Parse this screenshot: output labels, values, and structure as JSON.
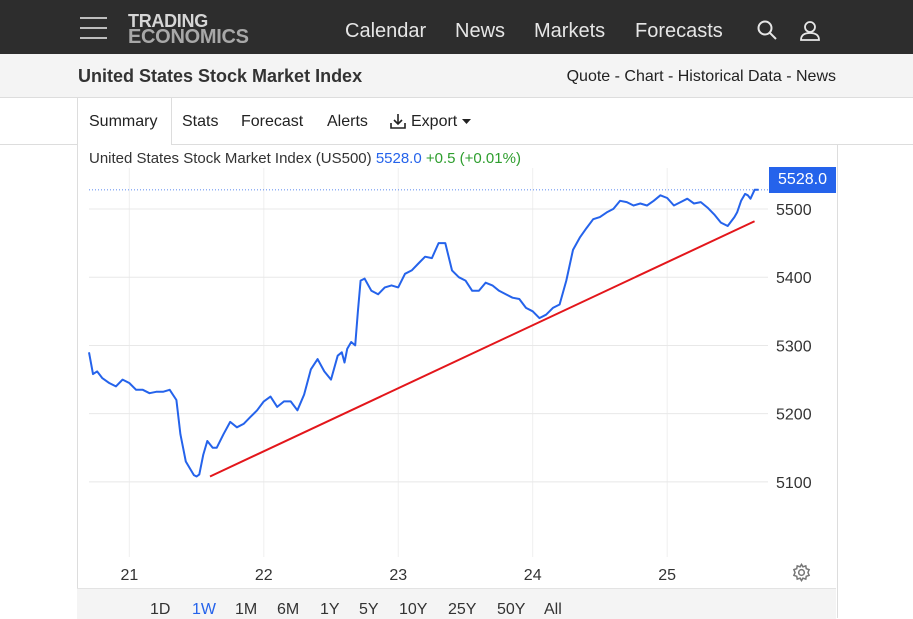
{
  "header": {
    "logo_line1": "TRADING",
    "logo_line2": "ECONOMICS",
    "nav": [
      "Calendar",
      "News",
      "Markets",
      "Forecasts"
    ]
  },
  "subheader": {
    "title": "United States Stock Market Index",
    "links": "Quote - Chart - Historical Data - News"
  },
  "tabs": [
    "Summary",
    "Stats",
    "Forecast",
    "Alerts",
    "Export"
  ],
  "legend": {
    "name": "United States Stock Market Index (US500)",
    "value": "5528.0",
    "change": "+0.5 (+0.01%)"
  },
  "price_tag": "5528.0",
  "ranges": [
    "1D",
    "1W",
    "1M",
    "6M",
    "1Y",
    "5Y",
    "10Y",
    "25Y",
    "50Y",
    "All"
  ],
  "active_range": "1W",
  "colors": {
    "line": "#2563eb",
    "trendline": "#e3161b",
    "tag": "#2563eb"
  },
  "icons": [
    "hamburger-icon",
    "search-icon",
    "user-icon",
    "download-icon",
    "caret-down-icon",
    "gear-icon"
  ],
  "chart_data": {
    "type": "line",
    "x_tick_labels": [
      "21",
      "22",
      "23",
      "24",
      "25"
    ],
    "x_tick_values": [
      21,
      22,
      23,
      24,
      25
    ],
    "xlim": [
      20.7,
      25.75
    ],
    "y_tick_labels": [
      "5100",
      "5200",
      "5300",
      "5400",
      "5500"
    ],
    "y_ticks": [
      5100,
      5200,
      5300,
      5400,
      5500
    ],
    "ylim": [
      4990,
      5560
    ],
    "grid": true,
    "last_value": 5528.0,
    "series": [
      {
        "x": [
          20.7,
          20.73,
          20.76,
          20.8,
          20.85,
          20.9,
          20.95,
          21.0,
          21.05,
          21.1,
          21.15,
          21.2,
          21.25,
          21.3,
          21.35,
          21.38,
          21.4,
          21.42,
          21.45,
          21.48,
          21.5,
          21.52,
          21.55,
          21.58,
          21.62,
          21.65,
          21.7,
          21.75,
          21.8,
          21.85,
          21.9,
          21.95,
          22.0,
          22.05,
          22.1,
          22.15,
          22.2,
          22.25,
          22.3,
          22.35,
          22.4,
          22.45,
          22.5,
          22.55,
          22.58,
          22.6,
          22.62,
          22.65,
          22.68,
          22.7,
          22.72,
          22.75,
          22.8,
          22.85,
          22.9,
          22.95,
          23.0,
          23.05,
          23.1,
          23.15,
          23.2,
          23.25,
          23.3,
          23.35,
          23.4,
          23.45,
          23.5,
          23.55,
          23.6,
          23.65,
          23.7,
          23.75,
          23.8,
          23.85,
          23.9,
          23.95,
          24.0,
          24.05,
          24.1,
          24.15,
          24.2,
          24.25,
          24.3,
          24.35,
          24.4,
          24.45,
          24.5,
          24.55,
          24.6,
          24.65,
          24.7,
          24.75,
          24.8,
          24.85,
          24.9,
          24.95,
          25.0,
          25.05,
          25.1,
          25.15,
          25.2,
          25.25,
          25.3,
          25.35,
          25.4,
          25.45,
          25.5,
          25.52,
          25.55,
          25.58,
          25.6,
          25.62,
          25.65,
          25.68
        ],
        "y": [
          5290,
          5258,
          5262,
          5252,
          5245,
          5240,
          5250,
          5245,
          5235,
          5235,
          5230,
          5232,
          5232,
          5235,
          5220,
          5170,
          5150,
          5130,
          5120,
          5110,
          5108,
          5111,
          5140,
          5160,
          5150,
          5150,
          5170,
          5188,
          5180,
          5185,
          5195,
          5205,
          5218,
          5225,
          5210,
          5218,
          5218,
          5205,
          5228,
          5265,
          5280,
          5262,
          5250,
          5285,
          5290,
          5275,
          5295,
          5305,
          5300,
          5350,
          5395,
          5398,
          5380,
          5375,
          5385,
          5388,
          5385,
          5405,
          5410,
          5420,
          5430,
          5428,
          5450,
          5450,
          5410,
          5400,
          5395,
          5380,
          5380,
          5392,
          5388,
          5380,
          5375,
          5370,
          5368,
          5355,
          5350,
          5340,
          5345,
          5355,
          5360,
          5395,
          5440,
          5458,
          5472,
          5485,
          5488,
          5495,
          5500,
          5512,
          5510,
          5505,
          5508,
          5505,
          5512,
          5520,
          5516,
          5505,
          5510,
          5515,
          5508,
          5510,
          5502,
          5492,
          5480,
          5475,
          5488,
          5495,
          5512,
          5522,
          5520,
          5515,
          5528,
          5528
        ]
      }
    ],
    "trendline": {
      "x": [
        21.6,
        25.65
      ],
      "y": [
        5108,
        5482
      ]
    }
  }
}
